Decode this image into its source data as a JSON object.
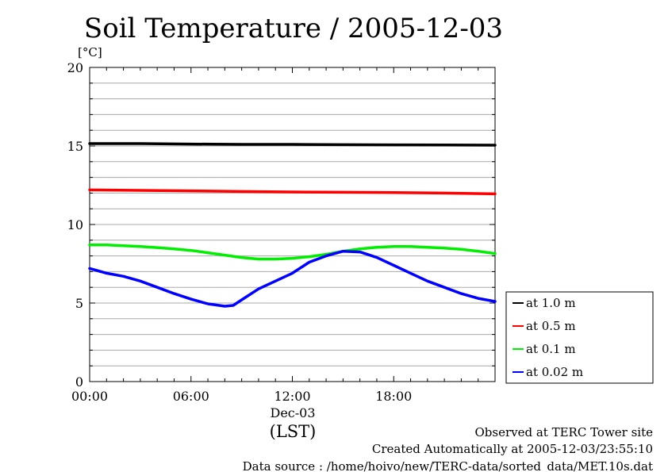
{
  "chart_data": {
    "type": "line",
    "title": "Soil Temperature / 2005-12-03",
    "ylabel": "[°C]",
    "xlabel": "(LST)",
    "date_label": "Dec-03",
    "ylim": [
      0,
      20
    ],
    "xlim": [
      0,
      24
    ],
    "y_ticks": [
      0,
      5,
      10,
      15,
      20
    ],
    "x_ticks": [
      0,
      6,
      12,
      18
    ],
    "x_tick_labels": [
      "00:00",
      "06:00",
      "12:00",
      "18:00"
    ],
    "grid": true,
    "legend_position": "right",
    "series": [
      {
        "name": "at 1.0 m",
        "color": "#000000",
        "x": [
          0,
          3,
          6,
          9,
          12,
          15,
          18,
          21,
          24
        ],
        "y": [
          15.15,
          15.15,
          15.12,
          15.1,
          15.1,
          15.08,
          15.07,
          15.06,
          15.05
        ]
      },
      {
        "name": "at 0.5 m",
        "color": "#ff0000",
        "x": [
          0,
          3,
          6,
          9,
          12,
          15,
          18,
          21,
          24
        ],
        "y": [
          12.2,
          12.17,
          12.14,
          12.1,
          12.07,
          12.05,
          12.03,
          12.0,
          11.95
        ]
      },
      {
        "name": "at 0.1 m",
        "color": "#00ee00",
        "x": [
          0,
          1,
          2,
          3,
          4,
          5,
          6,
          7,
          8,
          9,
          10,
          11,
          12,
          13,
          14,
          15,
          16,
          17,
          18,
          19,
          20,
          21,
          22,
          23,
          24
        ],
        "y": [
          8.7,
          8.7,
          8.65,
          8.6,
          8.53,
          8.45,
          8.35,
          8.2,
          8.05,
          7.9,
          7.8,
          7.8,
          7.85,
          7.95,
          8.1,
          8.3,
          8.45,
          8.55,
          8.6,
          8.6,
          8.55,
          8.5,
          8.42,
          8.3,
          8.15
        ]
      },
      {
        "name": "at 0.02 m",
        "color": "#0000ff",
        "x": [
          0,
          1,
          2,
          3,
          4,
          5,
          6,
          7,
          8,
          8.5,
          9,
          10,
          11,
          12,
          13,
          14,
          15,
          16,
          17,
          18,
          19,
          20,
          21,
          22,
          23,
          24
        ],
        "y": [
          7.2,
          6.9,
          6.7,
          6.4,
          6.0,
          5.6,
          5.25,
          4.95,
          4.8,
          4.85,
          5.2,
          5.9,
          6.4,
          6.9,
          7.6,
          8.0,
          8.3,
          8.25,
          7.9,
          7.4,
          6.9,
          6.4,
          6.0,
          5.6,
          5.3,
          5.1
        ]
      }
    ]
  },
  "footer": {
    "line1": "Observed at TERC Tower site",
    "line2": "Created Automatically at 2005-12-03/23:55:10",
    "line3": "Data source : /home/hoivo/new/TERC-data/sorted_data/MET.10s.dat"
  },
  "colors": {
    "grid": "#aaaaaa",
    "axis": "#000000",
    "background": "#ffffff"
  }
}
